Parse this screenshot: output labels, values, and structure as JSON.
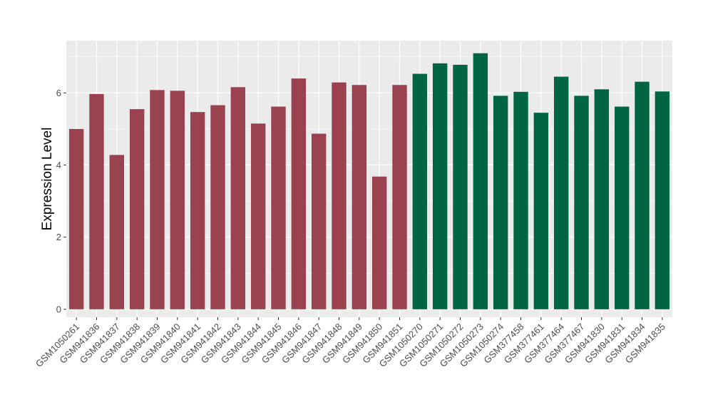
{
  "chart_data": {
    "type": "bar",
    "ylabel": "Expression Level",
    "xlabel": "",
    "ylim": [
      -0.22,
      7.45
    ],
    "yticks": [
      0,
      2,
      4,
      6
    ],
    "grid": true,
    "legend": "none",
    "colors": {
      "panel": "#EBEBEB",
      "grid": "#FFFFFF",
      "group1": "#9B4250",
      "group2": "#006641"
    },
    "categories": [
      "GSM1050261",
      "GSM941836",
      "GSM941837",
      "GSM941838",
      "GSM941839",
      "GSM941840",
      "GSM941841",
      "GSM941842",
      "GSM941843",
      "GSM941844",
      "GSM941845",
      "GSM941846",
      "GSM941847",
      "GSM941848",
      "GSM941849",
      "GSM941850",
      "GSM941851",
      "GSM1050270",
      "GSM1050271",
      "GSM1050272",
      "GSM1050273",
      "GSM1050274",
      "GSM377458",
      "GSM377461",
      "GSM377464",
      "GSM377467",
      "GSM941830",
      "GSM941831",
      "GSM941834",
      "GSM941835"
    ],
    "values": [
      5.0,
      5.97,
      4.28,
      5.55,
      6.08,
      6.06,
      5.47,
      5.66,
      6.16,
      5.15,
      5.62,
      6.4,
      4.87,
      6.29,
      6.22,
      3.68,
      6.22,
      6.53,
      6.82,
      6.78,
      7.1,
      5.92,
      6.03,
      5.45,
      6.45,
      5.92,
      6.1,
      5.62,
      6.31,
      6.04
    ],
    "groups": [
      1,
      1,
      1,
      1,
      1,
      1,
      1,
      1,
      1,
      1,
      1,
      1,
      1,
      1,
      1,
      1,
      1,
      2,
      2,
      2,
      2,
      2,
      2,
      2,
      2,
      2,
      2,
      2,
      2,
      2
    ]
  }
}
